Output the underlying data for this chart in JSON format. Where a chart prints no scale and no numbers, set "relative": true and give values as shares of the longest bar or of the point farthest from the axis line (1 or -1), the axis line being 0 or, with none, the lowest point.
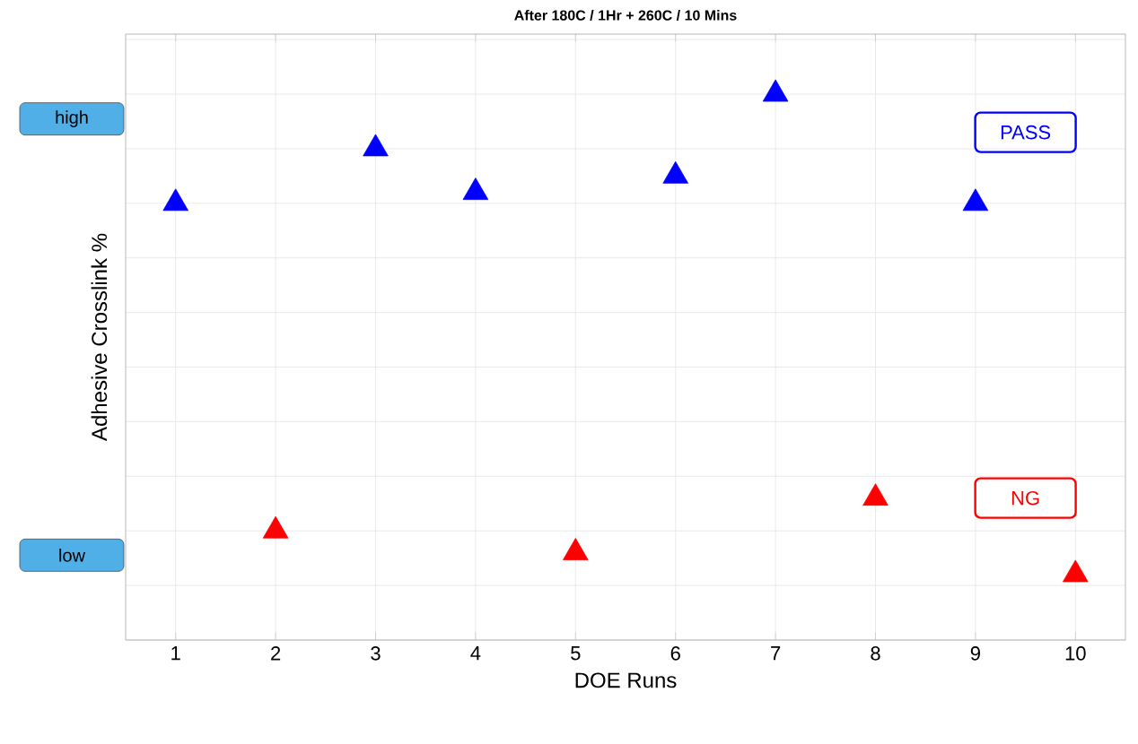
{
  "chart_data": {
    "type": "scatter",
    "title": "After 180C / 1Hr + 260C / 10 Mins",
    "xlabel": "DOE Runs",
    "ylabel": "Adhesive Crosslink %",
    "relative": true,
    "xlim": [
      0.5,
      10.5
    ],
    "xticks": [
      1,
      2,
      3,
      4,
      5,
      6,
      7,
      8,
      9,
      10
    ],
    "grid": true,
    "marker": "triangle",
    "legend": "right",
    "series": [
      {
        "name": "PASS",
        "color": "#0000ff",
        "x": [
          1,
          3,
          4,
          6,
          7,
          9
        ],
        "values": [
          0.8,
          0.9,
          0.82,
          0.85,
          1,
          0.8
        ]
      },
      {
        "name": "NG",
        "color": "#ff0000",
        "x": [
          2,
          5,
          8,
          10
        ],
        "values": [
          0.2,
          0.16,
          0.26,
          0.12
        ]
      }
    ],
    "annotations": [
      "high",
      "low"
    ]
  }
}
